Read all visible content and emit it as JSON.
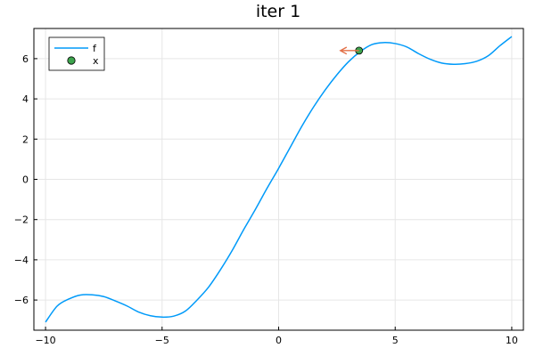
{
  "chart_data": {
    "type": "line",
    "title": "iter 1",
    "xlabel": "",
    "ylabel": "",
    "xlim": [
      -10.5,
      10.5
    ],
    "ylim": [
      -7.5,
      7.5
    ],
    "grid": true,
    "legend_position": "top-left",
    "x_ticks": [
      -10,
      -5,
      0,
      5,
      10
    ],
    "x_tick_labels": [
      "−10",
      "−5",
      "0",
      "5",
      "10"
    ],
    "y_ticks": [
      -6,
      -4,
      -2,
      0,
      2,
      4,
      6
    ],
    "y_tick_labels": [
      "−6",
      "−4",
      "−2",
      "0",
      "2",
      "4",
      "6"
    ],
    "series": [
      {
        "name": "f",
        "kind": "line",
        "color": "#009af9",
        "x": [
          -10,
          -9.5,
          -9,
          -8.5,
          -8,
          -7.5,
          -7,
          -6.5,
          -6,
          -5.5,
          -5,
          -4.5,
          -4,
          -3.5,
          -3,
          -2.5,
          -2,
          -1.5,
          -1,
          -0.5,
          0,
          0.5,
          1,
          1.5,
          2,
          2.5,
          3,
          3.5,
          4,
          4.5,
          5,
          5.5,
          6,
          6.5,
          7,
          7.5,
          8,
          8.5,
          9,
          9.5,
          10
        ],
        "y": [
          -7.1,
          -6.3,
          -5.95,
          -5.75,
          -5.74,
          -5.83,
          -6.05,
          -6.3,
          -6.6,
          -6.78,
          -6.85,
          -6.8,
          -6.55,
          -6.0,
          -5.35,
          -4.5,
          -3.55,
          -2.5,
          -1.5,
          -0.45,
          0.55,
          1.6,
          2.65,
          3.6,
          4.45,
          5.2,
          5.85,
          6.35,
          6.7,
          6.8,
          6.75,
          6.58,
          6.25,
          5.97,
          5.78,
          5.72,
          5.75,
          5.87,
          6.15,
          6.65,
          7.1
        ]
      },
      {
        "name": "x",
        "kind": "scatter",
        "color": "#3da44d",
        "x": [
          3.45
        ],
        "y": [
          6.4
        ]
      }
    ],
    "annotations": [
      {
        "kind": "arrow",
        "color": "#e26f46",
        "from": [
          3.45,
          6.4
        ],
        "to": [
          2.65,
          6.4
        ]
      }
    ]
  }
}
